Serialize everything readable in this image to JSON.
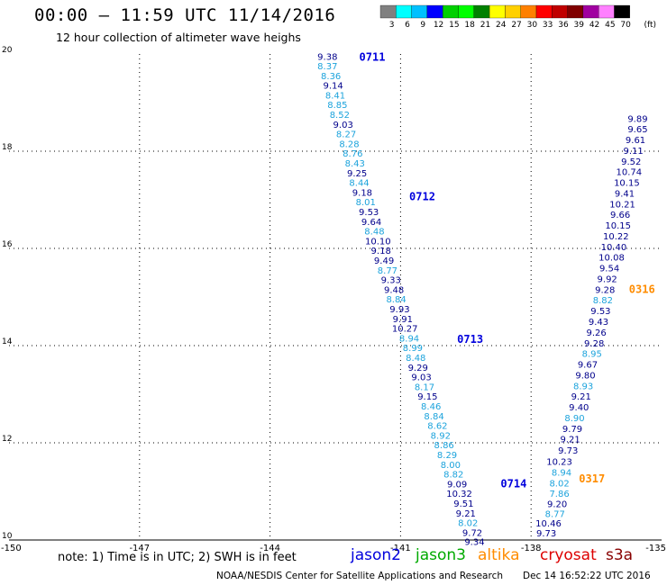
{
  "header": {
    "title": "00:00 – 11:59 UTC 11/14/2016",
    "subtitle": "12 hour collection of altimeter wave heighs"
  },
  "note": "note: 1) Time is in UTC; 2) SWH is in feet",
  "satellites": [
    {
      "name": "jason2",
      "color": "#0000dd"
    },
    {
      "name": "jason3",
      "color": "#00aa00"
    },
    {
      "name": "altika",
      "color": "#ff8c00"
    },
    {
      "name": "cryosat",
      "color": "#dd0000"
    },
    {
      "name": "s3a",
      "color": "#880000"
    }
  ],
  "footer": {
    "left": "NOAA/NESDIS Center for Satellite Applications and Research",
    "right": "Dec 14 16:52:22 UTC 2016"
  },
  "chart_data": {
    "type": "scatter",
    "xlim": [
      -150,
      -135
    ],
    "ylim": [
      10,
      20
    ],
    "x_ticks": [
      "-150",
      "-147",
      "-144",
      "-141",
      "-138",
      "-135"
    ],
    "x_tick_values": [
      -150,
      -147,
      -144,
      -141,
      -138,
      -135
    ],
    "y_ticks": [
      "10",
      "12",
      "14",
      "16",
      "18",
      "20"
    ],
    "y_tick_values": [
      10,
      12,
      14,
      16,
      18,
      20
    ],
    "grid": true,
    "colorbar": {
      "labels": [
        "3",
        "6",
        "9",
        "12",
        "15",
        "18",
        "21",
        "24",
        "27",
        "30",
        "33",
        "36",
        "39",
        "42",
        "45",
        "70"
      ],
      "unit": "(ft)",
      "colors": [
        "#808080",
        "#00ffff",
        "#00c0ff",
        "#0000ff",
        "#00d000",
        "#00ff00",
        "#008000",
        "#ffff00",
        "#ffd000",
        "#ff8000",
        "#ff0000",
        "#c00000",
        "#800000",
        "#a000a0",
        "#ff80ff",
        "#000000"
      ]
    },
    "time_labels": [
      {
        "text": "0711",
        "lon": -141.95,
        "lat": 19.95,
        "color": "#0000dd"
      },
      {
        "text": "0712",
        "lon": -140.8,
        "lat": 17.08,
        "color": "#0000dd"
      },
      {
        "text": "0713",
        "lon": -139.7,
        "lat": 14.15,
        "color": "#0000dd"
      },
      {
        "text": "0714",
        "lon": -138.7,
        "lat": 11.18,
        "color": "#0000dd"
      },
      {
        "text": "0316",
        "lon": -135.75,
        "lat": 15.18,
        "color": "#ff8c00"
      },
      {
        "text": "0317",
        "lon": -136.9,
        "lat": 11.28,
        "color": "#ff8c00"
      }
    ],
    "series": [
      {
        "name": "jason2",
        "points": [
          {
            "lon": -142.68,
            "lat": 19.95,
            "swh": "9.38",
            "color": "#00008b"
          },
          {
            "lon": -142.68,
            "lat": 19.76,
            "swh": "8.37",
            "color": "#1ca3dc"
          },
          {
            "lon": -142.6,
            "lat": 19.56,
            "swh": "8.36",
            "color": "#1ca3dc"
          },
          {
            "lon": -142.55,
            "lat": 19.36,
            "swh": "9.14",
            "color": "#00008b"
          },
          {
            "lon": -142.5,
            "lat": 19.16,
            "swh": "8.41",
            "color": "#1ca3dc"
          },
          {
            "lon": -142.45,
            "lat": 18.96,
            "swh": "8.85",
            "color": "#1ca3dc"
          },
          {
            "lon": -142.4,
            "lat": 18.76,
            "swh": "8.52",
            "color": "#1ca3dc"
          },
          {
            "lon": -142.32,
            "lat": 18.56,
            "swh": "9.03",
            "color": "#00008b"
          },
          {
            "lon": -142.25,
            "lat": 18.36,
            "swh": "8.27",
            "color": "#1ca3dc"
          },
          {
            "lon": -142.18,
            "lat": 18.16,
            "swh": "8.28",
            "color": "#1ca3dc"
          },
          {
            "lon": -142.1,
            "lat": 17.96,
            "swh": "8.76",
            "color": "#1ca3dc"
          },
          {
            "lon": -142.05,
            "lat": 17.76,
            "swh": "8.43",
            "color": "#1ca3dc"
          },
          {
            "lon": -142.0,
            "lat": 17.56,
            "swh": "9.25",
            "color": "#00008b"
          },
          {
            "lon": -141.95,
            "lat": 17.36,
            "swh": "8.44",
            "color": "#1ca3dc"
          },
          {
            "lon": -141.88,
            "lat": 17.16,
            "swh": "9.18",
            "color": "#00008b"
          },
          {
            "lon": -141.8,
            "lat": 16.96,
            "swh": "8.01",
            "color": "#1ca3dc"
          },
          {
            "lon": -141.73,
            "lat": 16.76,
            "swh": "9.53",
            "color": "#00008b"
          },
          {
            "lon": -141.67,
            "lat": 16.56,
            "swh": "9.64",
            "color": "#00008b"
          },
          {
            "lon": -141.6,
            "lat": 16.36,
            "swh": "8.48",
            "color": "#1ca3dc"
          },
          {
            "lon": -141.52,
            "lat": 16.16,
            "swh": "10.10",
            "color": "#00008b"
          },
          {
            "lon": -141.45,
            "lat": 15.96,
            "swh": "9.18",
            "color": "#00008b"
          },
          {
            "lon": -141.38,
            "lat": 15.76,
            "swh": "9.49",
            "color": "#00008b"
          },
          {
            "lon": -141.3,
            "lat": 15.56,
            "swh": "8.77",
            "color": "#1ca3dc"
          },
          {
            "lon": -141.22,
            "lat": 15.36,
            "swh": "9.33",
            "color": "#00008b"
          },
          {
            "lon": -141.15,
            "lat": 15.16,
            "swh": "9.48",
            "color": "#00008b"
          },
          {
            "lon": -141.1,
            "lat": 14.96,
            "swh": "8.84",
            "color": "#1ca3dc"
          },
          {
            "lon": -141.02,
            "lat": 14.76,
            "swh": "9.93",
            "color": "#00008b"
          },
          {
            "lon": -140.95,
            "lat": 14.56,
            "swh": "9.91",
            "color": "#00008b"
          },
          {
            "lon": -140.9,
            "lat": 14.36,
            "swh": "10.27",
            "color": "#00008b"
          },
          {
            "lon": -140.8,
            "lat": 14.16,
            "swh": "8.94",
            "color": "#1ca3dc"
          },
          {
            "lon": -140.72,
            "lat": 13.96,
            "swh": "8.99",
            "color": "#1ca3dc"
          },
          {
            "lon": -140.65,
            "lat": 13.76,
            "swh": "8.48",
            "color": "#1ca3dc"
          },
          {
            "lon": -140.6,
            "lat": 13.56,
            "swh": "9.29",
            "color": "#00008b"
          },
          {
            "lon": -140.52,
            "lat": 13.36,
            "swh": "9.03",
            "color": "#00008b"
          },
          {
            "lon": -140.45,
            "lat": 13.16,
            "swh": "8.17",
            "color": "#1ca3dc"
          },
          {
            "lon": -140.38,
            "lat": 12.96,
            "swh": "9.15",
            "color": "#00008b"
          },
          {
            "lon": -140.3,
            "lat": 12.76,
            "swh": "8.46",
            "color": "#1ca3dc"
          },
          {
            "lon": -140.23,
            "lat": 12.56,
            "swh": "8.84",
            "color": "#1ca3dc"
          },
          {
            "lon": -140.15,
            "lat": 12.36,
            "swh": "8.62",
            "color": "#1ca3dc"
          },
          {
            "lon": -140.08,
            "lat": 12.16,
            "swh": "8.92",
            "color": "#1ca3dc"
          },
          {
            "lon": -140.0,
            "lat": 11.96,
            "swh": "8.86",
            "color": "#1ca3dc"
          },
          {
            "lon": -139.93,
            "lat": 11.76,
            "swh": "8.29",
            "color": "#1ca3dc"
          },
          {
            "lon": -139.85,
            "lat": 11.56,
            "swh": "8.00",
            "color": "#1ca3dc"
          },
          {
            "lon": -139.78,
            "lat": 11.36,
            "swh": "8.82",
            "color": "#1ca3dc"
          },
          {
            "lon": -139.7,
            "lat": 11.16,
            "swh": "9.09",
            "color": "#00008b"
          },
          {
            "lon": -139.65,
            "lat": 10.96,
            "swh": "10.32",
            "color": "#00008b"
          },
          {
            "lon": -139.55,
            "lat": 10.76,
            "swh": "9.51",
            "color": "#00008b"
          },
          {
            "lon": -139.5,
            "lat": 10.56,
            "swh": "9.21",
            "color": "#00008b"
          },
          {
            "lon": -139.45,
            "lat": 10.36,
            "swh": "8.02",
            "color": "#1ca3dc"
          },
          {
            "lon": -139.35,
            "lat": 10.16,
            "swh": "9.72",
            "color": "#00008b"
          },
          {
            "lon": -139.3,
            "lat": 9.97,
            "swh": "9.34",
            "color": "#00008b"
          }
        ]
      },
      {
        "name": "altika",
        "points": [
          {
            "lon": -137.65,
            "lat": 10.15,
            "swh": "9.73",
            "color": "#00008b"
          },
          {
            "lon": -137.6,
            "lat": 10.35,
            "swh": "10.46",
            "color": "#00008b"
          },
          {
            "lon": -137.45,
            "lat": 10.55,
            "swh": "8.77",
            "color": "#1ca3dc"
          },
          {
            "lon": -137.4,
            "lat": 10.75,
            "swh": "9.20",
            "color": "#00008b"
          },
          {
            "lon": -137.35,
            "lat": 10.96,
            "swh": "7.86",
            "color": "#1ca3dc"
          },
          {
            "lon": -137.35,
            "lat": 11.18,
            "swh": "8.02",
            "color": "#1ca3dc"
          },
          {
            "lon": -137.3,
            "lat": 11.4,
            "swh": "8.94",
            "color": "#1ca3dc"
          },
          {
            "lon": -137.35,
            "lat": 11.62,
            "swh": "10.23",
            "color": "#00008b"
          },
          {
            "lon": -137.15,
            "lat": 11.85,
            "swh": "9.73",
            "color": "#00008b"
          },
          {
            "lon": -137.1,
            "lat": 12.08,
            "swh": "9.21",
            "color": "#00008b"
          },
          {
            "lon": -137.05,
            "lat": 12.3,
            "swh": "9.79",
            "color": "#00008b"
          },
          {
            "lon": -137.0,
            "lat": 12.52,
            "swh": "8.90",
            "color": "#1ca3dc"
          },
          {
            "lon": -136.9,
            "lat": 12.74,
            "swh": "9.40",
            "color": "#00008b"
          },
          {
            "lon": -136.85,
            "lat": 12.96,
            "swh": "9.21",
            "color": "#00008b"
          },
          {
            "lon": -136.8,
            "lat": 13.18,
            "swh": "8.93",
            "color": "#1ca3dc"
          },
          {
            "lon": -136.75,
            "lat": 13.4,
            "swh": "9.80",
            "color": "#00008b"
          },
          {
            "lon": -136.7,
            "lat": 13.62,
            "swh": "9.67",
            "color": "#00008b"
          },
          {
            "lon": -136.6,
            "lat": 13.84,
            "swh": "8.95",
            "color": "#1ca3dc"
          },
          {
            "lon": -136.55,
            "lat": 14.06,
            "swh": "9.28",
            "color": "#00008b"
          },
          {
            "lon": -136.5,
            "lat": 14.28,
            "swh": "9.26",
            "color": "#00008b"
          },
          {
            "lon": -136.45,
            "lat": 14.5,
            "swh": "9.43",
            "color": "#00008b"
          },
          {
            "lon": -136.4,
            "lat": 14.72,
            "swh": "9.53",
            "color": "#00008b"
          },
          {
            "lon": -136.35,
            "lat": 14.94,
            "swh": "8.82",
            "color": "#1ca3dc"
          },
          {
            "lon": -136.3,
            "lat": 15.16,
            "swh": "9.28",
            "color": "#00008b"
          },
          {
            "lon": -136.25,
            "lat": 15.38,
            "swh": "9.92",
            "color": "#00008b"
          },
          {
            "lon": -136.2,
            "lat": 15.6,
            "swh": "9.54",
            "color": "#00008b"
          },
          {
            "lon": -136.15,
            "lat": 15.82,
            "swh": "10.08",
            "color": "#00008b"
          },
          {
            "lon": -136.1,
            "lat": 16.04,
            "swh": "10.40",
            "color": "#00008b"
          },
          {
            "lon": -136.05,
            "lat": 16.26,
            "swh": "10.22",
            "color": "#00008b"
          },
          {
            "lon": -136.0,
            "lat": 16.48,
            "swh": "10.15",
            "color": "#00008b"
          },
          {
            "lon": -135.95,
            "lat": 16.7,
            "swh": "9.66",
            "color": "#00008b"
          },
          {
            "lon": -135.9,
            "lat": 16.92,
            "swh": "10.21",
            "color": "#00008b"
          },
          {
            "lon": -135.85,
            "lat": 17.14,
            "swh": "9.41",
            "color": "#00008b"
          },
          {
            "lon": -135.8,
            "lat": 17.36,
            "swh": "10.15",
            "color": "#00008b"
          },
          {
            "lon": -135.75,
            "lat": 17.58,
            "swh": "10.74",
            "color": "#00008b"
          },
          {
            "lon": -135.7,
            "lat": 17.8,
            "swh": "9.52",
            "color": "#00008b"
          },
          {
            "lon": -135.65,
            "lat": 18.02,
            "swh": "9.11",
            "color": "#00008b"
          },
          {
            "lon": -135.6,
            "lat": 18.24,
            "swh": "9.61",
            "color": "#00008b"
          },
          {
            "lon": -135.55,
            "lat": 18.46,
            "swh": "9.65",
            "color": "#00008b"
          },
          {
            "lon": -135.55,
            "lat": 18.68,
            "swh": "9.89",
            "color": "#00008b"
          }
        ]
      }
    ]
  }
}
